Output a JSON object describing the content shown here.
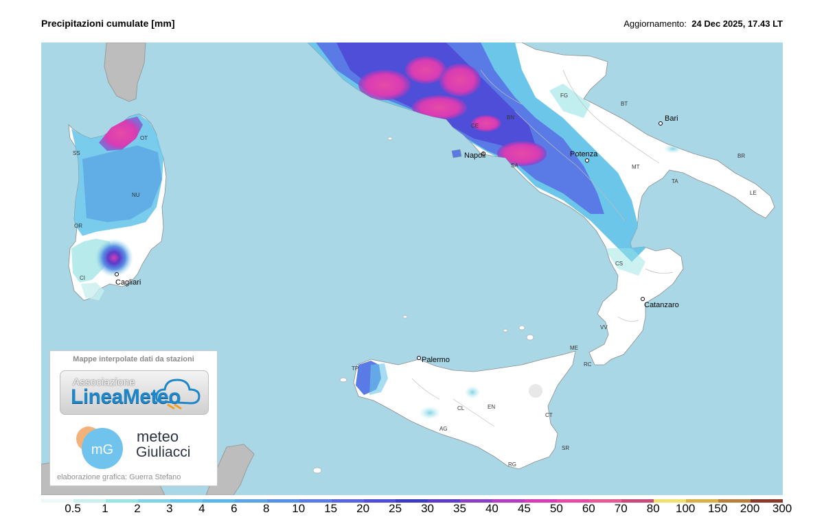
{
  "header": {
    "title": "Precipitazioni cumulate [mm]",
    "updated_label": "Aggiornamento:",
    "updated_value": "24 Dec 2025, 17.43 LT"
  },
  "colors": {
    "sea": "#aad7e5",
    "land": "#ffffff",
    "foreign_land": "#bdbdbd",
    "border": "#8c8c8c"
  },
  "map": {
    "cities": [
      {
        "id": "bari",
        "label": "Bari"
      },
      {
        "id": "potenza",
        "label": "Potenza"
      },
      {
        "id": "napoli",
        "label": "Napoli"
      },
      {
        "id": "catanzaro",
        "label": "Catanzaro"
      },
      {
        "id": "palermo",
        "label": "Palermo"
      },
      {
        "id": "cagliari",
        "label": "Cagliari"
      }
    ],
    "provinces": [
      "FG",
      "BT",
      "BR",
      "MT",
      "TA",
      "LE",
      "BN",
      "CE",
      "SA",
      "CS",
      "VV",
      "ME",
      "RC",
      "TP",
      "CL",
      "EN",
      "AG",
      "CT",
      "SR",
      "RG",
      "SS",
      "OT",
      "NU",
      "OR",
      "CI"
    ]
  },
  "credits": {
    "heading": "Mappe interpolate dati da stazioni",
    "logo1_small": "Associazione",
    "logo1_big_a": "Linea",
    "logo1_big_b": "Meteo",
    "logo2_icon": "mG",
    "logo2_line1": "meteo",
    "logo2_line2": "Giuliacci",
    "footer": "elaborazione grafica: Guerra Stefano"
  },
  "legend": {
    "values": [
      "0.5",
      "1",
      "2",
      "3",
      "4",
      "6",
      "8",
      "10",
      "15",
      "20",
      "25",
      "30",
      "35",
      "40",
      "45",
      "50",
      "60",
      "70",
      "80",
      "100",
      "150",
      "200",
      "300"
    ],
    "colors": [
      "#eef8f8",
      "#c9efef",
      "#98e3e3",
      "#7ed4e6",
      "#6cc6ea",
      "#5cb6ea",
      "#5aa4e6",
      "#5890e6",
      "#5a7ae6",
      "#5864e0",
      "#4e4ed8",
      "#3b3bc4",
      "#5a3cc8",
      "#8a40c6",
      "#b43cc0",
      "#d83cb4",
      "#e64aa6",
      "#e65a94",
      "#c84a78",
      "#f0e070",
      "#d8b048",
      "#b8803c",
      "#8a3a2a"
    ]
  }
}
